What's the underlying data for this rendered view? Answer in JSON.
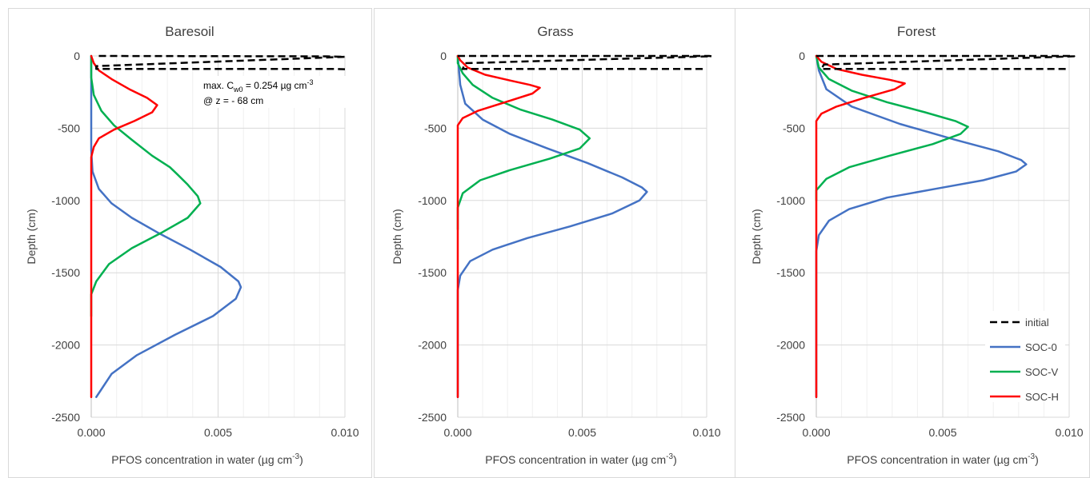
{
  "chart_data": [
    {
      "type": "line",
      "title": "Baresoil",
      "xlabel": "PFOS concentration in water (µg cm⁻³)",
      "ylabel": "Depth (cm)",
      "xlim": [
        0,
        0.01
      ],
      "ylim": [
        -2500,
        0
      ],
      "x_ticks": [
        "0.000",
        "0.005",
        "0.010"
      ],
      "y_ticks": [
        "0",
        "-500",
        "-1000",
        "-1500",
        "-2000",
        "-2500"
      ],
      "annotation": [
        "max. C",
        "w0",
        " = 0.254 µg cm",
        "-3",
        "@ z = - 68 cm"
      ],
      "series": [
        {
          "name": "initial",
          "color": "#000000",
          "dash": true,
          "points": [
            [
              0.0003,
              0
            ],
            [
              0.0093,
              -3
            ],
            [
              0.0097,
              -5
            ],
            [
              0.01,
              -6
            ],
            [
              0.0002,
              -70
            ],
            [
              0.0002,
              -90
            ],
            [
              0.0097,
              -90
            ],
            [
              0.01,
              -92
            ]
          ]
        },
        {
          "name": "SOC-0",
          "color": "#4472c4",
          "points": [
            [
              0,
              0
            ],
            [
              0,
              -500
            ],
            [
              0,
              -650
            ],
            [
              5e-05,
              -800
            ],
            [
              0.0003,
              -920
            ],
            [
              0.0008,
              -1020
            ],
            [
              0.0016,
              -1120
            ],
            [
              0.0026,
              -1220
            ],
            [
              0.0039,
              -1340
            ],
            [
              0.0051,
              -1460
            ],
            [
              0.0058,
              -1560
            ],
            [
              0.0059,
              -1600
            ],
            [
              0.0057,
              -1680
            ],
            [
              0.0048,
              -1800
            ],
            [
              0.0033,
              -1930
            ],
            [
              0.0018,
              -2070
            ],
            [
              0.0008,
              -2200
            ],
            [
              0.0002,
              -2360
            ]
          ]
        },
        {
          "name": "SOC-V",
          "color": "#00b050",
          "points": [
            [
              0,
              0
            ],
            [
              0,
              -150
            ],
            [
              0.0001,
              -270
            ],
            [
              0.0004,
              -380
            ],
            [
              0.0009,
              -480
            ],
            [
              0.0016,
              -580
            ],
            [
              0.0024,
              -690
            ],
            [
              0.0031,
              -770
            ],
            [
              0.0034,
              -820
            ],
            [
              0.0038,
              -890
            ],
            [
              0.0042,
              -970
            ],
            [
              0.0043,
              -1020
            ],
            [
              0.0038,
              -1120
            ],
            [
              0.0028,
              -1220
            ],
            [
              0.0016,
              -1330
            ],
            [
              0.0007,
              -1440
            ],
            [
              0.0002,
              -1560
            ],
            [
              0,
              -1650
            ],
            [
              0,
              -1800
            ]
          ]
        },
        {
          "name": "SOC-H",
          "color": "#ff0000",
          "points": [
            [
              0,
              0
            ],
            [
              0.0001,
              -50
            ],
            [
              0.0003,
              -100
            ],
            [
              0.0008,
              -160
            ],
            [
              0.0015,
              -230
            ],
            [
              0.0022,
              -290
            ],
            [
              0.0026,
              -340
            ],
            [
              0.0024,
              -390
            ],
            [
              0.0017,
              -450
            ],
            [
              0.0009,
              -510
            ],
            [
              0.0003,
              -570
            ],
            [
              0.0001,
              -630
            ],
            [
              0,
              -700
            ],
            [
              0,
              -2360
            ]
          ]
        }
      ]
    },
    {
      "type": "line",
      "title": "Grass",
      "xlabel": "PFOS concentration in water (µg cm⁻³)",
      "ylabel": "Depth (cm)",
      "xlim": [
        0,
        0.01
      ],
      "ylim": [
        -2500,
        0
      ],
      "x_ticks": [
        "0.000",
        "0.005",
        "0.010"
      ],
      "y_ticks": [
        "0",
        "-500",
        "-1000",
        "-1500",
        "-2000",
        "-2500"
      ],
      "series": [
        {
          "name": "initial",
          "color": "#000000",
          "dash": true,
          "points": [
            [
              0,
              0
            ],
            [
              0.0101,
              0
            ],
            [
              0.0102,
              -2
            ],
            [
              0.0003,
              -50
            ],
            [
              0.0002,
              -90
            ],
            [
              0.0098,
              -90
            ],
            [
              0.01,
              -92
            ]
          ]
        },
        {
          "name": "SOC-0",
          "color": "#4472c4",
          "points": [
            [
              0,
              0
            ],
            [
              0.0001,
              -200
            ],
            [
              0.0003,
              -330
            ],
            [
              0.001,
              -440
            ],
            [
              0.0021,
              -540
            ],
            [
              0.0036,
              -640
            ],
            [
              0.0052,
              -740
            ],
            [
              0.0066,
              -840
            ],
            [
              0.0074,
              -910
            ],
            [
              0.0076,
              -940
            ],
            [
              0.0073,
              -1000
            ],
            [
              0.0062,
              -1090
            ],
            [
              0.0045,
              -1180
            ],
            [
              0.0028,
              -1260
            ],
            [
              0.0014,
              -1340
            ],
            [
              0.0005,
              -1420
            ],
            [
              0.0001,
              -1520
            ],
            [
              0,
              -1620
            ],
            [
              0,
              -2360
            ]
          ]
        },
        {
          "name": "SOC-V",
          "color": "#00b050",
          "points": [
            [
              0,
              0
            ],
            [
              0,
              -50
            ],
            [
              0.0002,
              -120
            ],
            [
              0.0006,
              -200
            ],
            [
              0.0014,
              -290
            ],
            [
              0.0025,
              -370
            ],
            [
              0.0038,
              -440
            ],
            [
              0.0049,
              -510
            ],
            [
              0.0053,
              -570
            ],
            [
              0.0049,
              -640
            ],
            [
              0.0037,
              -710
            ],
            [
              0.0021,
              -790
            ],
            [
              0.0009,
              -860
            ],
            [
              0.0002,
              -950
            ],
            [
              0,
              -1050
            ],
            [
              0,
              -1200
            ]
          ]
        },
        {
          "name": "SOC-H",
          "color": "#ff0000",
          "points": [
            [
              0,
              0
            ],
            [
              0.0001,
              -30
            ],
            [
              0.0004,
              -80
            ],
            [
              0.0011,
              -130
            ],
            [
              0.0021,
              -170
            ],
            [
              0.0029,
              -200
            ],
            [
              0.0033,
              -220
            ],
            [
              0.003,
              -260
            ],
            [
              0.0019,
              -320
            ],
            [
              0.0008,
              -380
            ],
            [
              0.0002,
              -430
            ],
            [
              0,
              -480
            ],
            [
              0,
              -2360
            ]
          ]
        }
      ]
    },
    {
      "type": "line",
      "title": "Forest",
      "xlabel": "PFOS concentration in water (µg cm⁻³)",
      "ylabel": "Depth (cm)",
      "xlim": [
        0,
        0.01
      ],
      "ylim": [
        -2500,
        0
      ],
      "x_ticks": [
        "0.000",
        "0.005",
        "0.010"
      ],
      "y_ticks": [
        "0",
        "-500",
        "-1000",
        "-1500",
        "-2000",
        "-2500"
      ],
      "legend": {
        "position": "bottom-right",
        "entries": [
          "initial",
          "SOC-0",
          "SOC-V",
          "SOC-H"
        ]
      },
      "series": [
        {
          "name": "initial",
          "color": "#000000",
          "dash": true,
          "points": [
            [
              0,
              0
            ],
            [
              0.0101,
              0
            ],
            [
              0.0102,
              -2
            ],
            [
              0.0003,
              -60
            ],
            [
              0.0002,
              -90
            ],
            [
              0.0098,
              -90
            ],
            [
              0.01,
              -92
            ]
          ]
        },
        {
          "name": "SOC-0",
          "color": "#4472c4",
          "points": [
            [
              0,
              0
            ],
            [
              0.0001,
              -100
            ],
            [
              0.0004,
              -230
            ],
            [
              0.0014,
              -350
            ],
            [
              0.0033,
              -470
            ],
            [
              0.0055,
              -580
            ],
            [
              0.0072,
              -660
            ],
            [
              0.0081,
              -720
            ],
            [
              0.0083,
              -750
            ],
            [
              0.0079,
              -800
            ],
            [
              0.0066,
              -860
            ],
            [
              0.0047,
              -920
            ],
            [
              0.0028,
              -980
            ],
            [
              0.0013,
              -1060
            ],
            [
              0.0005,
              -1140
            ],
            [
              0.0001,
              -1240
            ],
            [
              0,
              -1350
            ],
            [
              0,
              -2360
            ]
          ]
        },
        {
          "name": "SOC-V",
          "color": "#00b050",
          "points": [
            [
              0,
              0
            ],
            [
              0.0001,
              -80
            ],
            [
              0.0005,
              -160
            ],
            [
              0.0014,
              -240
            ],
            [
              0.0028,
              -320
            ],
            [
              0.0043,
              -390
            ],
            [
              0.0055,
              -450
            ],
            [
              0.006,
              -490
            ],
            [
              0.0057,
              -540
            ],
            [
              0.0046,
              -610
            ],
            [
              0.0029,
              -690
            ],
            [
              0.0013,
              -770
            ],
            [
              0.0004,
              -850
            ],
            [
              0,
              -930
            ],
            [
              0,
              -1000
            ]
          ]
        },
        {
          "name": "SOC-H",
          "color": "#ff0000",
          "points": [
            [
              0,
              0
            ],
            [
              0.0002,
              -40
            ],
            [
              0.0008,
              -90
            ],
            [
              0.0018,
              -130
            ],
            [
              0.0029,
              -165
            ],
            [
              0.0035,
              -190
            ],
            [
              0.0031,
              -230
            ],
            [
              0.0019,
              -290
            ],
            [
              0.0008,
              -350
            ],
            [
              0.0002,
              -400
            ],
            [
              0,
              -450
            ],
            [
              0,
              -2360
            ]
          ]
        }
      ]
    }
  ]
}
